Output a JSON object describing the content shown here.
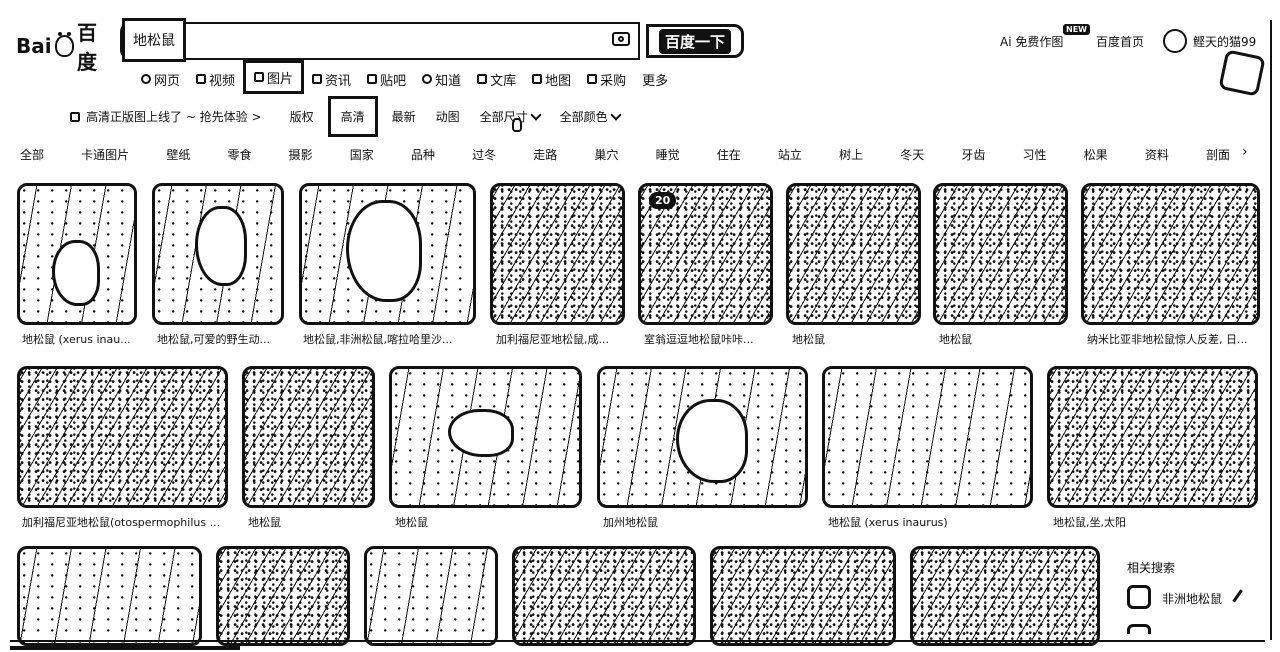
{
  "header": {
    "logo_text": "Bai",
    "logo_cn": "百度",
    "query": "地松鼠",
    "search_button": "百度一下",
    "ai_label": "Ai 免费作图",
    "new_badge": "NEW",
    "home_link": "百度首页",
    "username": "鲣天的猫99"
  },
  "nav": {
    "items": [
      {
        "label": "网页",
        "icon": "search-icon"
      },
      {
        "label": "视频",
        "icon": "video-icon"
      },
      {
        "label": "图片",
        "icon": "image-icon",
        "active": true
      },
      {
        "label": "资讯",
        "icon": "news-icon"
      },
      {
        "label": "贴吧",
        "icon": "tieba-icon"
      },
      {
        "label": "知道",
        "icon": "question-icon"
      },
      {
        "label": "文库",
        "icon": "doc-icon"
      },
      {
        "label": "地图",
        "icon": "map-icon"
      },
      {
        "label": "采购",
        "icon": "purchase-icon"
      },
      {
        "label": "更多",
        "icon": ""
      }
    ]
  },
  "filters": {
    "promo": "高清正版图上线了 ~ 抢先体验 >",
    "items": [
      "版权",
      "高清",
      "最新",
      "动图"
    ],
    "size": "全部尺寸",
    "color": "全部颜色"
  },
  "categories": [
    "全部",
    "卡通图片",
    "壁纸",
    "零食",
    "摄影",
    "国家",
    "品种",
    "过冬",
    "走路",
    "巢穴",
    "睡觉",
    "住在",
    "站立",
    "树上",
    "冬天",
    "牙齿",
    "习性",
    "松果",
    "资料",
    "剖面"
  ],
  "results": {
    "row1": [
      "地松鼠 (xerus inau...",
      "地松鼠,可爱的野生动...",
      "地松鼠,非洲松鼠,喀拉哈里沙...",
      "加利福尼亚地松鼠,成...",
      "室翁逗逗地松鼠咔咔...",
      "地松鼠",
      "地松鼠",
      "纳米比亚非地松鼠惊人反差, 日..."
    ],
    "row2": [
      "加利福尼亚地松鼠(otospermophilus ...",
      "地松鼠",
      "地松鼠",
      "加州地松鼠",
      "地松鼠 (xerus inaurus)",
      "地松鼠,坐,太阳"
    ],
    "badge": "20"
  },
  "related": {
    "title": "相关搜索",
    "term": "非洲地松鼠"
  }
}
